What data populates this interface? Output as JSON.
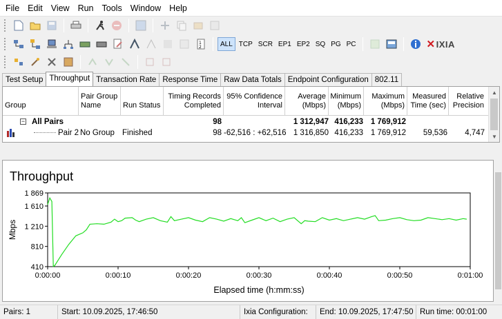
{
  "menu": [
    "File",
    "Edit",
    "View",
    "Run",
    "Tools",
    "Window",
    "Help"
  ],
  "toolbar2_labels": [
    "ALL",
    "TCP",
    "SCR",
    "EP1",
    "EP2",
    "SQ",
    "PG",
    "PC"
  ],
  "brand": "IXIA",
  "tabs": [
    "Test Setup",
    "Throughput",
    "Transaction Rate",
    "Response Time",
    "Raw Data Totals",
    "Endpoint Configuration",
    "802.11"
  ],
  "table": {
    "headers": [
      "Group",
      "Pair Group\nName",
      "Run Status",
      "Timing Records\nCompleted",
      "95% Confidence\nInterval",
      "Average\n(Mbps)",
      "Minimum\n(Mbps)",
      "Maximum\n(Mbps)",
      "Measured\nTime (sec)",
      "Relative\nPrecision"
    ],
    "all_pairs": {
      "label": "All Pairs",
      "records": "98",
      "average": "1 312,947",
      "minimum": "416,233",
      "maximum": "1 769,912"
    },
    "pair2": {
      "label": "Pair 2",
      "group": "No Group",
      "status": "Finished",
      "records": "98",
      "ci": "-62,516 : +62,516",
      "average": "1 316,850",
      "minimum": "416,233",
      "maximum": "1 769,912",
      "time": "59,536",
      "precision": "4,747"
    }
  },
  "chart_title": "Throughput",
  "chart_data": {
    "type": "line",
    "title": "Throughput",
    "xlabel": "Elapsed time (h:mm:ss)",
    "ylabel": "Mbps",
    "ylim": [
      410,
      1869
    ],
    "xlim": [
      0,
      60
    ],
    "yticks": [
      "1 869",
      "1 610",
      "1 210",
      "810",
      "410"
    ],
    "ytick_values": [
      1869,
      1610,
      1210,
      810,
      410
    ],
    "xticks": [
      "0:00:00",
      "0:00:10",
      "0:00:20",
      "0:00:30",
      "0:00:40",
      "0:00:50",
      "0:01:00"
    ],
    "xtick_values": [
      0,
      10,
      20,
      30,
      40,
      50,
      60
    ],
    "series": [
      {
        "color": "#22dd22",
        "x": [
          0,
          0.3,
          0.6,
          0.8,
          1.0,
          2.0,
          3.0,
          4.0,
          5.0,
          5.5,
          6.0,
          7.0,
          8.0,
          9.0,
          9.5,
          10.0,
          10.5,
          11.0,
          12.0,
          12.5,
          13.0,
          14.0,
          15.0,
          16.0,
          17.0,
          17.5,
          18.0,
          19.0,
          20.0,
          21.0,
          22.0,
          23.0,
          24.0,
          25.0,
          26.0,
          27.0,
          27.5,
          28.0,
          29.0,
          30.0,
          31.0,
          32.0,
          33.0,
          34.0,
          35.0,
          36.0,
          36.5,
          37.0,
          38.0,
          39.0,
          40.0,
          41.0,
          42.0,
          43.0,
          44.0,
          45.0,
          46.0,
          46.5,
          47.0,
          48.0,
          49.0,
          50.0,
          51.0,
          52.0,
          53.0,
          54.0,
          55.0,
          56.0,
          57.0,
          58.0,
          59.0,
          59.5
        ],
        "y": [
          1640,
          1769,
          1700,
          416,
          430,
          650,
          850,
          1020,
          1080,
          1140,
          1250,
          1260,
          1250,
          1290,
          1350,
          1300,
          1320,
          1370,
          1380,
          1330,
          1300,
          1350,
          1380,
          1320,
          1290,
          1400,
          1320,
          1350,
          1380,
          1330,
          1300,
          1380,
          1350,
          1310,
          1360,
          1320,
          1380,
          1280,
          1330,
          1380,
          1320,
          1370,
          1300,
          1350,
          1380,
          1260,
          1320,
          1310,
          1300,
          1380,
          1330,
          1360,
          1320,
          1350,
          1380,
          1350,
          1400,
          1420,
          1320,
          1330,
          1360,
          1380,
          1340,
          1320,
          1330,
          1380,
          1360,
          1340,
          1360,
          1330,
          1360,
          1350
        ]
      }
    ]
  },
  "status": {
    "pairs": "Pairs: 1",
    "start": "Start: 10.09.2025, 17:46:50",
    "ixia_config": "Ixia Configuration:",
    "end": "End: 10.09.2025, 17:47:50",
    "runtime": "Run time: 00:01:00"
  }
}
